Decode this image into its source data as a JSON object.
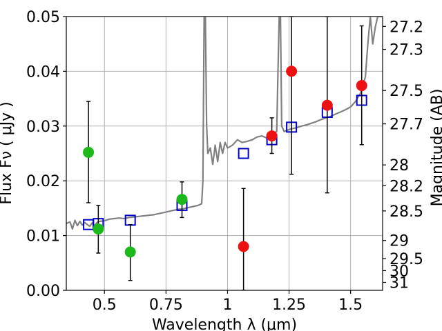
{
  "chart_data": {
    "type": "scatter",
    "xlabel": "Wavelength  λ (μm)",
    "ylabel": "Flux  Fν  ( μJy )",
    "y2label": "Magnitude (AB)",
    "xlim": [
      0.345,
      1.63
    ],
    "ylim": [
      0.0,
      0.05
    ],
    "grid": true,
    "x_ticks": [
      0.5,
      0.75,
      1.0,
      1.25,
      1.5
    ],
    "x_tick_labels": [
      "0.5",
      "0.75",
      "1",
      "1.25",
      "1.5"
    ],
    "y_ticks": [
      0.0,
      0.01,
      0.02,
      0.03,
      0.04,
      0.05
    ],
    "y_tick_labels": [
      "0.00",
      "0.01",
      "0.02",
      "0.03",
      "0.04",
      "0.05"
    ],
    "y2_ticks": [
      {
        "label": "27.2",
        "flux": 0.0482
      },
      {
        "label": "27.3",
        "flux": 0.044
      },
      {
        "label": "27.5",
        "flux": 0.0365
      },
      {
        "label": "27.7",
        "flux": 0.0304
      },
      {
        "label": "28",
        "flux": 0.0229
      },
      {
        "label": "28.2",
        "flux": 0.0191
      },
      {
        "label": "28.5",
        "flux": 0.0145
      },
      {
        "label": "29",
        "flux": 0.0091
      },
      {
        "label": "29.5",
        "flux": 0.0058
      },
      {
        "label": "30",
        "flux": 0.0036
      },
      {
        "label": "31",
        "flux": 0.00145
      }
    ],
    "series": [
      {
        "kind": "line",
        "color": "#808080",
        "x": [
          0.345,
          0.36,
          0.37,
          0.38,
          0.39,
          0.4,
          0.41,
          0.42,
          0.43,
          0.44,
          0.45,
          0.46,
          0.47,
          0.48,
          0.5,
          0.52,
          0.54,
          0.56,
          0.58,
          0.6,
          0.62,
          0.64,
          0.66,
          0.68,
          0.7,
          0.72,
          0.74,
          0.76,
          0.78,
          0.8,
          0.82,
          0.84,
          0.86,
          0.88,
          0.895,
          0.9,
          0.905,
          0.91,
          0.915,
          0.92,
          0.93,
          0.94,
          0.95,
          0.96,
          0.97,
          0.98,
          0.99,
          1.0,
          1.02,
          1.04,
          1.06,
          1.08,
          1.1,
          1.12,
          1.14,
          1.16,
          1.18,
          1.2,
          1.205,
          1.21,
          1.215,
          1.22,
          1.23,
          1.24,
          1.26,
          1.28,
          1.3,
          1.32,
          1.34,
          1.36,
          1.38,
          1.4,
          1.42,
          1.44,
          1.46,
          1.48,
          1.5,
          1.52,
          1.54,
          1.56,
          1.57,
          1.58,
          1.59,
          1.6,
          1.61,
          1.62,
          1.63
        ],
        "y": [
          0.0122,
          0.0125,
          0.0112,
          0.0128,
          0.0118,
          0.0126,
          0.0119,
          0.0124,
          0.012,
          0.0117,
          0.0123,
          0.0118,
          0.0124,
          0.0126,
          0.0127,
          0.013,
          0.0131,
          0.0132,
          0.0131,
          0.0133,
          0.0134,
          0.0135,
          0.0136,
          0.0137,
          0.0138,
          0.014,
          0.0142,
          0.0144,
          0.0146,
          0.0148,
          0.0149,
          0.0151,
          0.0153,
          0.0155,
          0.0158,
          0.02,
          0.05,
          0.05,
          0.03,
          0.025,
          0.026,
          0.023,
          0.0265,
          0.0235,
          0.027,
          0.025,
          0.027,
          0.026,
          0.0265,
          0.0275,
          0.027,
          0.0272,
          0.0275,
          0.028,
          0.0282,
          0.0278,
          0.0285,
          0.029,
          0.04,
          0.05,
          0.05,
          0.03,
          0.029,
          0.0292,
          0.0295,
          0.0297,
          0.03,
          0.0302,
          0.0305,
          0.0308,
          0.0312,
          0.0315,
          0.0318,
          0.0322,
          0.0326,
          0.033,
          0.0335,
          0.0345,
          0.036,
          0.039,
          0.045,
          0.05,
          0.045,
          0.048,
          0.05,
          0.05,
          0.05
        ]
      },
      {
        "kind": "points",
        "marker": "open-square",
        "color": "#0000cc",
        "x": [
          0.435,
          0.475,
          0.605,
          0.815,
          1.065,
          1.18,
          1.26,
          1.405,
          1.545
        ],
        "y": [
          0.012,
          0.0122,
          0.0128,
          0.0155,
          0.025,
          0.0275,
          0.0298,
          0.0325,
          0.0347
        ]
      },
      {
        "kind": "points",
        "marker": "filled-circle",
        "color": "#1cb81c",
        "x": [
          0.435,
          0.475,
          0.605,
          0.815
        ],
        "y": [
          0.0252,
          0.0112,
          0.007,
          0.0166
        ],
        "yerr_low": [
          0.016,
          0.0068,
          0.0018,
          0.0133
        ],
        "yerr_high": [
          0.0345,
          0.0155,
          0.012,
          0.0198
        ]
      },
      {
        "kind": "points",
        "marker": "filled-circle",
        "color": "#ee1111",
        "x": [
          1.065,
          1.18,
          1.26,
          1.405,
          1.545
        ],
        "y": [
          0.008,
          0.0282,
          0.04,
          0.0338,
          0.0374
        ],
        "yerr_low": [
          0.0,
          0.025,
          0.0212,
          0.0178,
          0.0266
        ],
        "yerr_high": [
          0.0186,
          0.0315,
          0.05,
          0.05,
          0.0483
        ]
      }
    ]
  }
}
